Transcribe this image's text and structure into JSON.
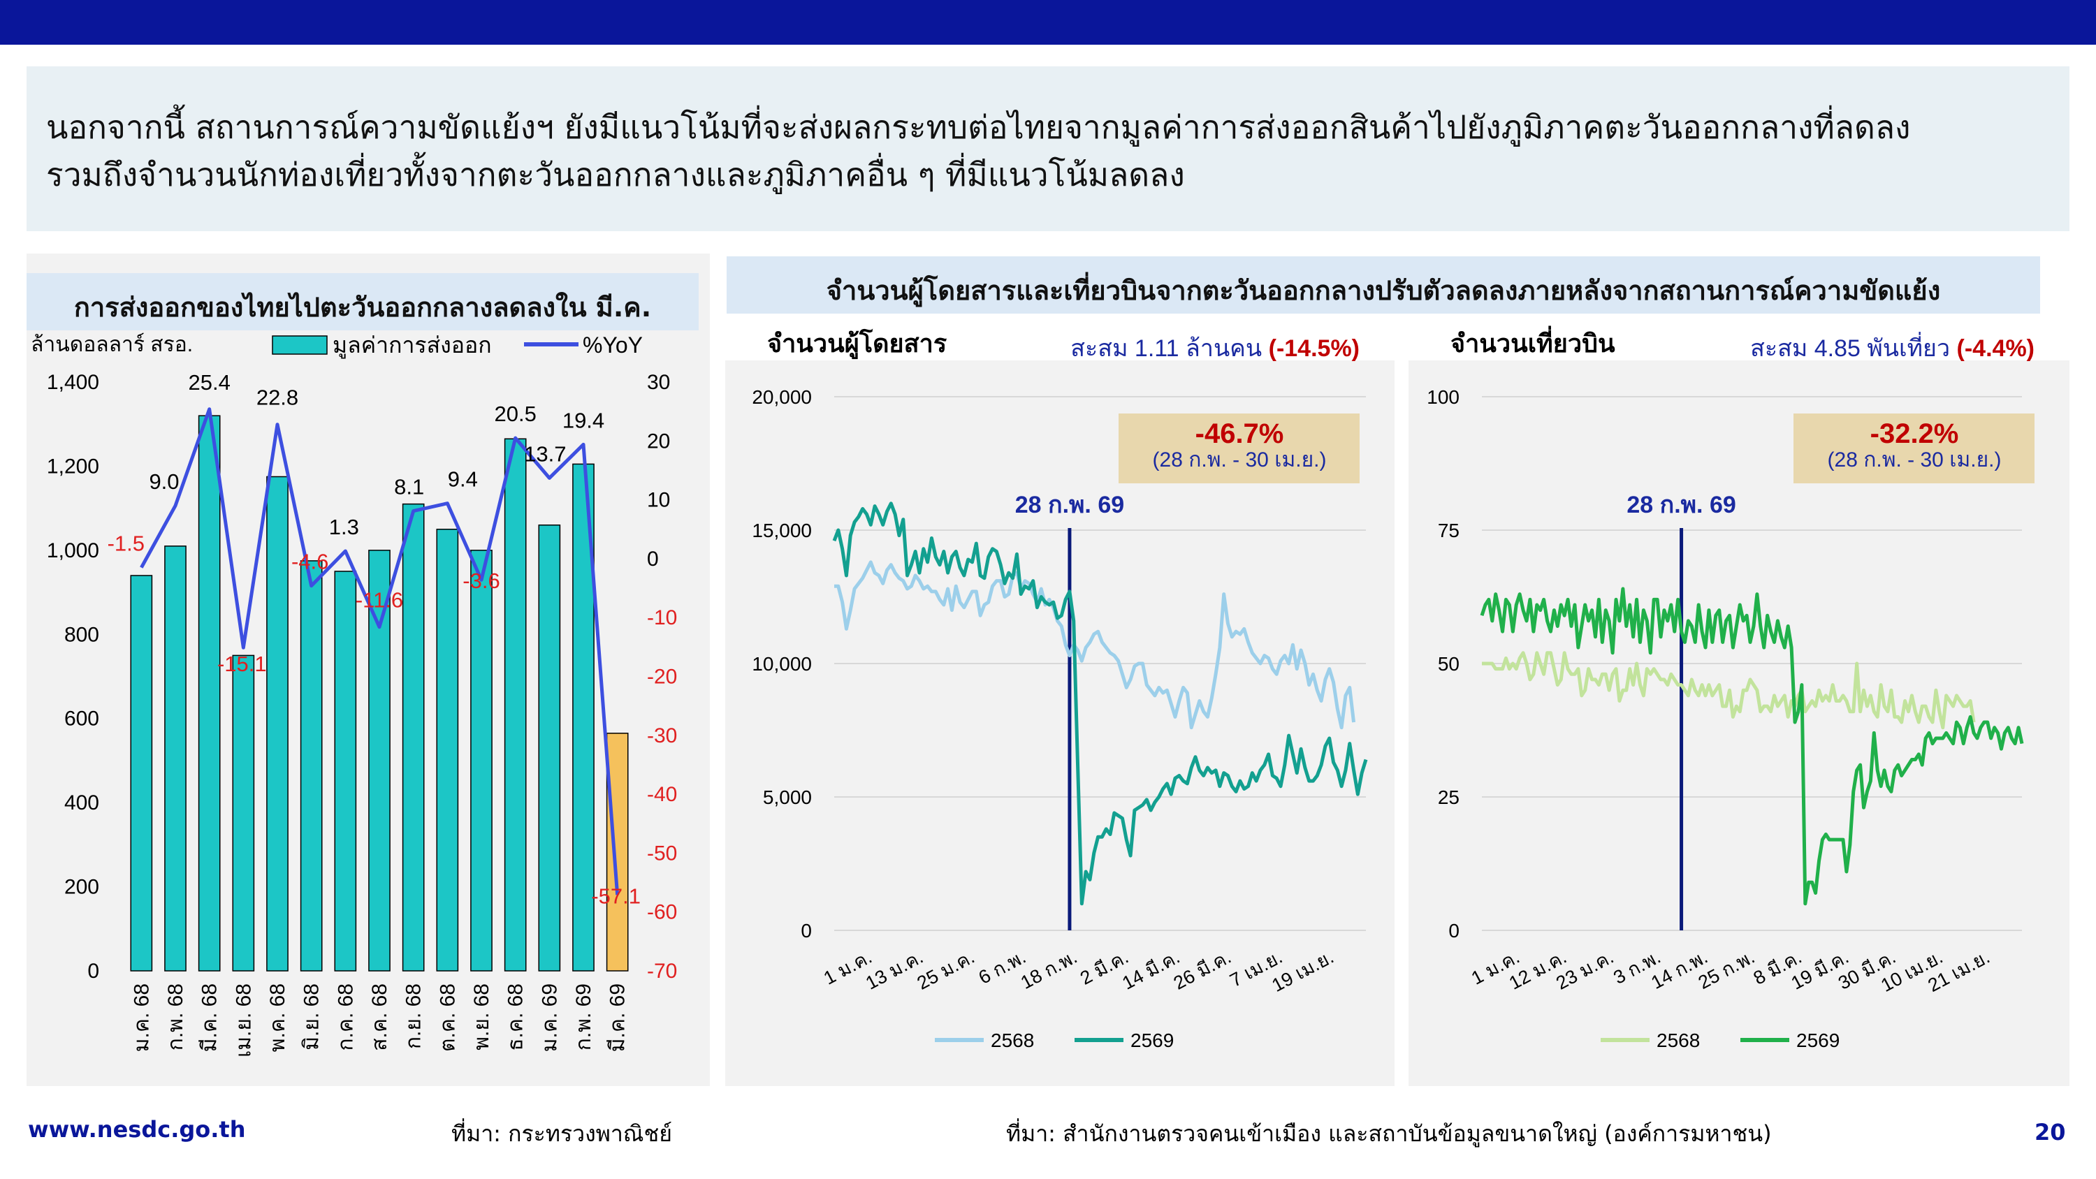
{
  "intro": {
    "line1": "นอกจากนี้ สถานการณ์ความขัดแย้งฯ ยังมีแนวโน้มที่จะส่งผลกระทบต่อไทยจากมูลค่าการส่งออกสินค้าไปยังภูมิภาคตะวันออกกลางที่ลดลง",
    "line2": "รวมถึงจำนวนนักท่องเที่ยวทั้งจากตะวันออกกลางและภูมิภาคอื่น ๆ ที่มีแนวโน้มลดลง"
  },
  "colors": {
    "topbar": "#0a169a",
    "bar": "#1cc6c6",
    "bar_last": "#f5c15c",
    "yoy_line": "#3d4fe0",
    "neg_label": "#e02020",
    "passengers_2568": "#9ccfea",
    "passengers_2569": "#13a090",
    "flights_2568": "#c2e39c",
    "flights_2569": "#20b04a",
    "event_line": "#0a1a7a",
    "callout_bg": "#e8d7ad",
    "callout_red": "#c00000"
  },
  "left_chart": {
    "header": "การส่งออกของไทยไปตะวันออกกลางลดลงใน มี.ค."
  },
  "right_charts": {
    "header": "จำนวนผู้โดยสารและเที่ยวบินจากตะวันออกกลางปรับตัวลดลงภายหลังจากสถานการณ์ความขัดแย้ง"
  },
  "footer": {
    "url": "www.nesdc.go.th",
    "source_left": "ที่มา: กระทรวงพาณิชย์",
    "source_right": "ที่มา: สำนักงานตรวจคนเข้าเมือง และสถาบันข้อมูลขนาดใหญ่ (องค์การมหาชน)",
    "page": "20"
  },
  "chart_data": [
    {
      "type": "bar",
      "title": "การส่งออกของไทยไปตะวันออกกลางลดลงใน มี.ค.",
      "ylabel": "ล้านดอลลาร์ สรอ.",
      "ylim": [
        0,
        1400
      ],
      "y2lim": [
        -70,
        30
      ],
      "yticks": [
        0,
        200,
        400,
        600,
        800,
        1000,
        1200,
        1400
      ],
      "y2ticks": [
        -70,
        -60,
        -50,
        -40,
        -30,
        -20,
        -10,
        0,
        10,
        20,
        30
      ],
      "categories": [
        "ม.ค. 68",
        "ก.พ. 68",
        "มี.ค. 68",
        "เม.ย. 68",
        "พ.ค. 68",
        "มิ.ย. 68",
        "ก.ค. 68",
        "ส.ค. 68",
        "ก.ย. 68",
        "ต.ค. 68",
        "พ.ย. 68",
        "ธ.ค. 68",
        "ม.ค. 69",
        "ก.พ. 69",
        "มี.ค. 69"
      ],
      "series": [
        {
          "name": "มูลค่าการส่งออก",
          "axis": "left",
          "type": "bar",
          "values": [
            940,
            1010,
            1320,
            750,
            1175,
            975,
            950,
            1000,
            1110,
            1050,
            1000,
            1265,
            1060,
            1205,
            565
          ]
        },
        {
          "name": "%YoY",
          "axis": "right",
          "type": "line",
          "values": [
            -1.5,
            9.0,
            25.4,
            -15.1,
            22.8,
            -4.6,
            1.3,
            -11.6,
            8.1,
            9.4,
            -3.6,
            20.5,
            13.7,
            19.4,
            -57.1
          ]
        }
      ],
      "data_labels": [
        "-1.5",
        "9.0",
        "25.4",
        "-15.1",
        "22.8",
        "-4.6",
        "1.3",
        "-11.6",
        "8.1",
        "9.4",
        "-3.6",
        "20.5",
        "13.7",
        "19.4",
        "-57.1"
      ]
    },
    {
      "type": "line",
      "title": "จำนวนผู้โดยสาร",
      "summary_prefix": "สะสม 1.11 ล้านคน",
      "summary_change": "(-14.5%)",
      "callout_value": "-46.7%",
      "callout_period": "(28 ก.พ. - 30 เม.ย.)",
      "event_label": "28 ก.พ. 69",
      "ylim": [
        0,
        20000
      ],
      "yticks": [
        "0",
        "5,000",
        "10,000",
        "15,000",
        "20,000"
      ],
      "xticks": [
        "1 ม.ค.",
        "13 ม.ค.",
        "25 ม.ค.",
        "6 ก.พ.",
        "18 ก.พ.",
        "2 มี.ค.",
        "14 มี.ค.",
        "26 มี.ค.",
        "7 เม.ย.",
        "19 เม.ย."
      ],
      "legend": [
        "2568",
        "2569"
      ],
      "event_day": 58,
      "series": [
        {
          "name": "2568",
          "values": [
            12900,
            12900,
            12300,
            11300,
            12000,
            12800,
            13000,
            13200,
            13500,
            13800,
            13400,
            13300,
            13000,
            13500,
            13700,
            13400,
            13200,
            13100,
            12800,
            12900,
            13300,
            13100,
            12800,
            12900,
            12700,
            12700,
            12400,
            12200,
            12800,
            12000,
            12900,
            12300,
            12100,
            12400,
            12700,
            12700,
            11800,
            12200,
            12300,
            12900,
            13100,
            13100,
            12500,
            12600,
            13300,
            13400,
            12800,
            13100,
            13000,
            12600,
            12300,
            12800,
            12200,
            12400,
            12100,
            11600,
            11400,
            10700,
            10300,
            10700,
            10500,
            10100,
            10600,
            10800,
            11100,
            11200,
            10800,
            10600,
            10400,
            10300,
            10100,
            9600,
            9100,
            9400,
            9900,
            10000,
            10000,
            9200,
            9000,
            8800,
            9100,
            8900,
            9000,
            8500,
            8000,
            8600,
            9100,
            8900,
            7600,
            8100,
            8600,
            8200,
            8000,
            8700,
            9600,
            10600,
            12600,
            11500,
            11000,
            11200,
            11100,
            11300,
            10800,
            10400,
            10200,
            10000,
            10300,
            10200,
            9800,
            9600,
            10100,
            10300,
            10000,
            10700,
            9800,
            10500,
            10000,
            9200,
            9600,
            9000,
            8600,
            9400,
            9800,
            9300,
            8300,
            7600,
            8800,
            9100,
            7800
          ]
        },
        {
          "name": "2569",
          "values": [
            14600,
            15000,
            14300,
            13300,
            14800,
            15300,
            15500,
            15800,
            15600,
            15200,
            15900,
            15600,
            15200,
            15700,
            16000,
            15600,
            14800,
            15400,
            13300,
            13700,
            14200,
            13400,
            14300,
            13800,
            14700,
            14000,
            13700,
            14200,
            13400,
            14000,
            14200,
            13600,
            13300,
            13900,
            13800,
            14500,
            13300,
            13200,
            14000,
            14300,
            14200,
            13700,
            13000,
            13400,
            13200,
            14100,
            12600,
            12900,
            12800,
            13100,
            12100,
            12500,
            12300,
            12200,
            12300,
            11700,
            11800,
            12400,
            12700,
            11600,
            6200,
            1000,
            2200,
            1900,
            2900,
            3500,
            3500,
            3800,
            3600,
            4400,
            4300,
            4200,
            3400,
            2800,
            4500,
            4600,
            4700,
            4900,
            4500,
            4800,
            5000,
            5300,
            5500,
            5100,
            5700,
            5800,
            5600,
            5500,
            6100,
            6500,
            6000,
            5800,
            6100,
            5900,
            6000,
            5400,
            5900,
            5800,
            5400,
            5200,
            5600,
            5300,
            5400,
            5900,
            5600,
            6000,
            6200,
            6600,
            5800,
            5700,
            5400,
            6200,
            7300,
            6600,
            5900,
            6800,
            6100,
            5600,
            5600,
            5800,
            6200,
            6900,
            7200,
            6300,
            6000,
            5400,
            6000,
            7000,
            6000,
            5100,
            5900,
            6400
          ]
        }
      ]
    },
    {
      "type": "line",
      "title": "จำนวนเที่ยวบิน",
      "summary_prefix": "สะสม 4.85 พันเที่ยว",
      "summary_change": "(-4.4%)",
      "callout_value": "-32.2%",
      "callout_period": "(28 ก.พ. - 30 เม.ย.)",
      "event_label": "28 ก.พ. 69",
      "ylim": [
        0,
        100
      ],
      "yticks": [
        "0",
        "25",
        "50",
        "75",
        "100"
      ],
      "xticks": [
        "1 ม.ค.",
        "12 ม.ค.",
        "23 ม.ค.",
        "3 ก.พ.",
        "14 ก.พ.",
        "25 ก.พ.",
        "8 มี.ค.",
        "19 มี.ค.",
        "30 มี.ค.",
        "10 เม.ย.",
        "21 เม.ย."
      ],
      "legend": [
        "2568",
        "2569"
      ],
      "event_day": 58,
      "series": [
        {
          "name": "2568",
          "values": [
            50,
            50,
            50,
            50,
            49,
            49,
            49,
            51,
            49,
            50,
            49,
            51,
            52,
            50,
            47,
            48,
            52,
            50,
            48,
            52,
            52,
            49,
            46,
            47,
            52,
            49,
            48,
            48,
            49,
            44,
            45,
            49,
            47,
            47,
            46,
            48,
            48,
            45,
            48,
            49,
            43,
            45,
            45,
            49,
            46,
            50,
            46,
            44,
            49,
            48,
            49,
            48,
            47,
            47,
            46,
            48,
            47,
            46,
            46,
            45,
            44,
            47,
            45,
            44,
            46,
            44,
            46,
            44,
            45,
            46,
            42,
            42,
            45,
            40,
            42,
            41,
            45,
            45,
            47,
            46,
            45,
            41,
            42,
            42,
            41,
            44,
            42,
            43,
            44,
            40,
            43,
            42,
            44,
            45,
            41,
            42,
            43,
            42,
            45,
            43,
            44,
            43,
            46,
            43,
            43,
            44,
            43,
            41,
            41,
            50,
            41,
            45,
            42,
            44,
            41,
            40,
            46,
            42,
            41,
            45,
            40,
            40,
            39,
            43,
            41,
            44,
            41,
            39,
            42,
            42,
            40,
            39,
            45,
            41,
            38,
            44,
            43,
            42,
            44,
            43,
            42,
            42,
            43,
            39
          ]
        },
        {
          "name": "2569",
          "values": [
            59,
            61,
            62,
            58,
            63,
            60,
            56,
            62,
            61,
            56,
            61,
            63,
            60,
            58,
            62,
            56,
            61,
            60,
            62,
            58,
            56,
            60,
            57,
            61,
            59,
            62,
            57,
            61,
            53,
            57,
            61,
            58,
            60,
            55,
            62,
            54,
            60,
            58,
            52,
            62,
            58,
            64,
            57,
            61,
            55,
            62,
            54,
            60,
            58,
            52,
            62,
            62,
            55,
            60,
            58,
            61,
            56,
            62,
            56,
            54,
            58,
            57,
            54,
            61,
            56,
            53,
            60,
            54,
            59,
            60,
            54,
            58,
            59,
            53,
            57,
            61,
            58,
            59,
            54,
            57,
            63,
            57,
            53,
            59,
            56,
            54,
            58,
            55,
            53,
            57,
            53,
            39,
            41,
            46,
            5,
            9,
            9,
            7,
            13,
            17,
            18,
            17,
            17,
            17,
            17,
            17,
            11,
            16,
            26,
            30,
            31,
            23,
            26,
            28,
            37,
            30,
            27,
            30,
            27,
            26,
            30,
            31,
            29,
            30,
            31,
            32,
            32,
            33,
            31,
            36,
            37,
            35,
            36,
            36,
            36,
            37,
            36,
            35,
            39,
            38,
            35,
            38,
            40,
            37,
            36,
            38,
            39,
            39,
            36,
            38,
            37,
            34,
            37,
            38,
            36,
            35,
            38,
            35
          ]
        }
      ]
    }
  ]
}
